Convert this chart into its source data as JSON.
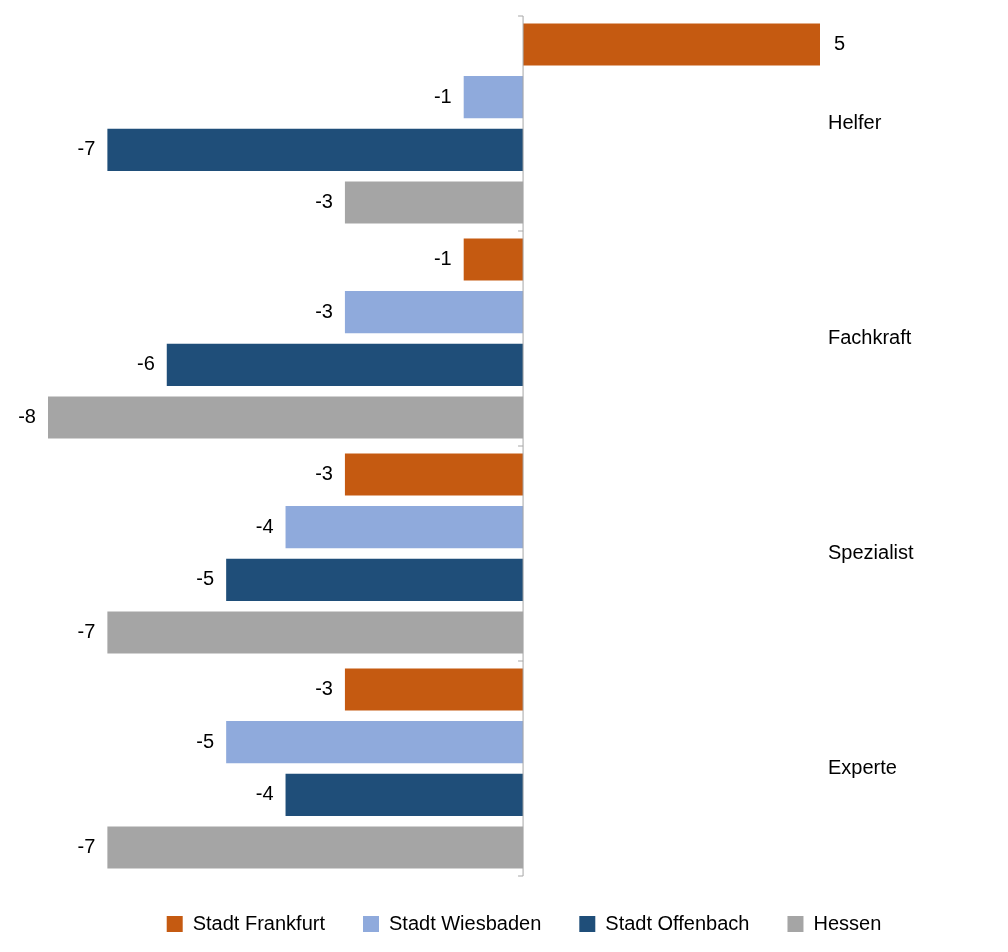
{
  "chart_data": {
    "type": "bar",
    "orientation": "horizontal",
    "categories": [
      "Helfer",
      "Fachkraft",
      "Spezialist",
      "Experte"
    ],
    "series": [
      {
        "name": "Stadt Frankfurt",
        "color": "#c55a11",
        "values": [
          5,
          -1,
          -3,
          -3
        ]
      },
      {
        "name": "Stadt Wiesbaden",
        "color": "#8faadc",
        "values": [
          -1,
          -3,
          -4,
          -5
        ]
      },
      {
        "name": "Stadt Offenbach",
        "color": "#1f4e79",
        "values": [
          -7,
          -6,
          -5,
          -4
        ]
      },
      {
        "name": "Hessen",
        "color": "#a5a5a5",
        "values": [
          -3,
          -8,
          -7,
          -7
        ]
      }
    ],
    "xlim": [
      -8,
      5
    ],
    "data_labels": true,
    "legend": "bottom"
  }
}
